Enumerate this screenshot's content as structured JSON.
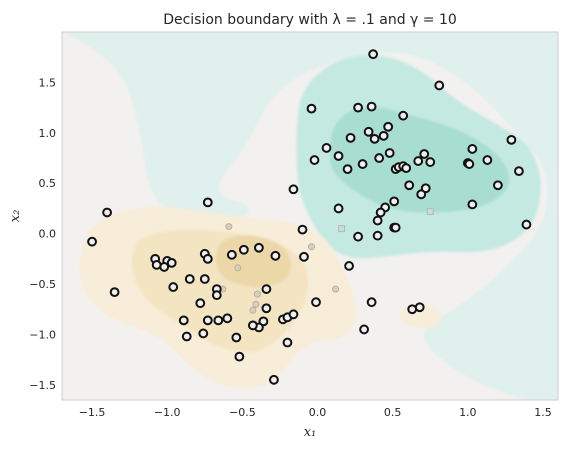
{
  "chart_data": {
    "type": "scatter",
    "title": "Decision boundary with λ = .1 and γ = 10",
    "xlabel": "x₁",
    "ylabel": "x₂",
    "xlim": [
      -1.7,
      1.6
    ],
    "ylim": [
      -1.65,
      2.0
    ],
    "grid": false,
    "x_ticks": [
      -1.5,
      -1.0,
      -0.5,
      0.0,
      0.5,
      1.0,
      1.5
    ],
    "x_tick_labels": [
      "−1.5",
      "−1.0",
      "−0.5",
      "0.0",
      "0.5",
      "1.0",
      "1.5"
    ],
    "y_ticks": [
      -1.5,
      -1.0,
      -0.5,
      0.0,
      0.5,
      1.0,
      1.5
    ],
    "y_tick_labels": [
      "−1.5",
      "−1.0",
      "−0.5",
      "0.0",
      "0.5",
      "1.0",
      "1.5"
    ],
    "colors": {
      "background": "#f3f1ef",
      "teal_light": "#dff0ed",
      "teal_mid": "#c4e9e1",
      "teal_dark": "#a8ddd2",
      "orange_light": "#f7edd8",
      "orange_mid": "#f3e4c2",
      "orange_dark": "#ecd7a8",
      "marker_edge": "#111111",
      "marker_fill": "#f0f0f0",
      "faded_edge": "#b9b09c",
      "faded_fill": "#d8d0bf"
    },
    "support_vectors": [
      [
        0.37,
        1.78
      ],
      [
        0.81,
        1.47
      ],
      [
        -0.04,
        1.24
      ],
      [
        0.27,
        1.25
      ],
      [
        0.36,
        1.26
      ],
      [
        0.57,
        1.17
      ],
      [
        0.06,
        0.85
      ],
      [
        0.22,
        0.95
      ],
      [
        0.34,
        1.01
      ],
      [
        0.38,
        0.94
      ],
      [
        0.47,
        1.06
      ],
      [
        0.44,
        0.97
      ],
      [
        0.14,
        0.77
      ],
      [
        -0.02,
        0.73
      ],
      [
        0.2,
        0.64
      ],
      [
        0.3,
        0.69
      ],
      [
        0.48,
        0.8
      ],
      [
        0.41,
        0.75
      ],
      [
        0.52,
        0.64
      ],
      [
        0.54,
        0.66
      ],
      [
        0.57,
        0.67
      ],
      [
        0.59,
        0.65
      ],
      [
        0.67,
        0.72
      ],
      [
        0.71,
        0.79
      ],
      [
        0.75,
        0.71
      ],
      [
        0.61,
        0.48
      ],
      [
        0.72,
        0.45
      ],
      [
        0.69,
        0.39
      ],
      [
        1.03,
        0.84
      ],
      [
        1.0,
        0.7
      ],
      [
        1.01,
        0.69
      ],
      [
        1.13,
        0.73
      ],
      [
        1.29,
        0.93
      ],
      [
        1.34,
        0.62
      ],
      [
        1.2,
        0.48
      ],
      [
        1.03,
        0.29
      ],
      [
        1.39,
        0.09
      ],
      [
        0.51,
        0.32
      ],
      [
        0.45,
        0.26
      ],
      [
        0.42,
        0.21
      ],
      [
        0.4,
        0.13
      ],
      [
        0.51,
        0.06
      ],
      [
        0.52,
        0.06
      ],
      [
        0.4,
        -0.02
      ],
      [
        0.27,
        -0.03
      ],
      [
        0.14,
        0.25
      ],
      [
        -0.16,
        0.44
      ],
      [
        -0.1,
        0.04
      ],
      [
        -0.73,
        0.31
      ],
      [
        -1.4,
        0.21
      ],
      [
        -1.5,
        -0.08
      ],
      [
        -1.08,
        -0.25
      ],
      [
        -1.07,
        -0.31
      ],
      [
        -1.0,
        -0.27
      ],
      [
        -1.02,
        -0.33
      ],
      [
        -0.97,
        -0.29
      ],
      [
        -0.96,
        -0.53
      ],
      [
        -0.85,
        -0.45
      ],
      [
        -0.75,
        -0.45
      ],
      [
        -0.75,
        -0.2
      ],
      [
        -0.73,
        -0.25
      ],
      [
        -0.57,
        -0.21
      ],
      [
        -0.49,
        -0.16
      ],
      [
        -0.39,
        -0.14
      ],
      [
        -0.28,
        -0.22
      ],
      [
        -0.09,
        -0.23
      ],
      [
        -0.67,
        -0.55
      ],
      [
        -0.67,
        -0.61
      ],
      [
        -0.78,
        -0.69
      ],
      [
        -0.73,
        -0.86
      ],
      [
        -0.66,
        -0.86
      ],
      [
        -0.6,
        -0.84
      ],
      [
        -0.34,
        -0.55
      ],
      [
        -0.36,
        -0.87
      ],
      [
        -0.39,
        -0.93
      ],
      [
        -0.34,
        -0.74
      ],
      [
        -0.23,
        -0.85
      ],
      [
        -0.2,
        -0.83
      ],
      [
        -0.16,
        -0.8
      ],
      [
        -0.2,
        -1.08
      ],
      [
        -0.43,
        -0.91
      ],
      [
        -0.54,
        -1.03
      ],
      [
        -0.52,
        -1.22
      ],
      [
        -0.29,
        -1.45
      ],
      [
        -0.89,
        -0.86
      ],
      [
        -0.87,
        -1.02
      ],
      [
        -0.76,
        -0.99
      ],
      [
        -1.35,
        -0.58
      ],
      [
        -0.01,
        -0.68
      ],
      [
        0.21,
        -0.32
      ],
      [
        0.31,
        -0.95
      ],
      [
        0.36,
        -0.68
      ],
      [
        0.63,
        -0.75
      ],
      [
        0.68,
        -0.73
      ]
    ],
    "other_points": {
      "teal_class": [
        [
          0.16,
          0.05
        ],
        [
          0.75,
          0.22
        ]
      ],
      "orange_class": [
        [
          -0.59,
          0.07
        ],
        [
          -0.04,
          -0.13
        ],
        [
          -0.53,
          -0.34
        ],
        [
          -0.63,
          -0.55
        ],
        [
          -0.41,
          -0.7
        ],
        [
          -0.4,
          -0.6
        ],
        [
          -0.43,
          -0.76
        ],
        [
          0.12,
          -0.55
        ]
      ]
    }
  }
}
